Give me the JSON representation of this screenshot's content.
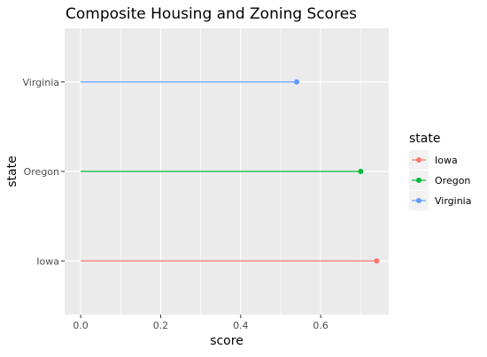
{
  "chart_data": {
    "type": "lollipop",
    "title": "Composite Housing and Zoning Scores",
    "xlabel": "score",
    "ylabel": "state",
    "xlim": [
      -0.04,
      0.77
    ],
    "x_ticks": [
      0.0,
      0.2,
      0.4,
      0.6
    ],
    "x_tick_labels": [
      "0.0",
      "0.2",
      "0.4",
      "0.6"
    ],
    "categories": [
      "Iowa",
      "Oregon",
      "Virginia"
    ],
    "values": [
      0.74,
      0.7,
      0.54
    ],
    "colors": [
      "#F8766D",
      "#00BA38",
      "#619CFF"
    ],
    "grid": true,
    "legend": {
      "title": "state",
      "position": "right",
      "entries": [
        "Iowa",
        "Oregon",
        "Virginia"
      ]
    }
  }
}
